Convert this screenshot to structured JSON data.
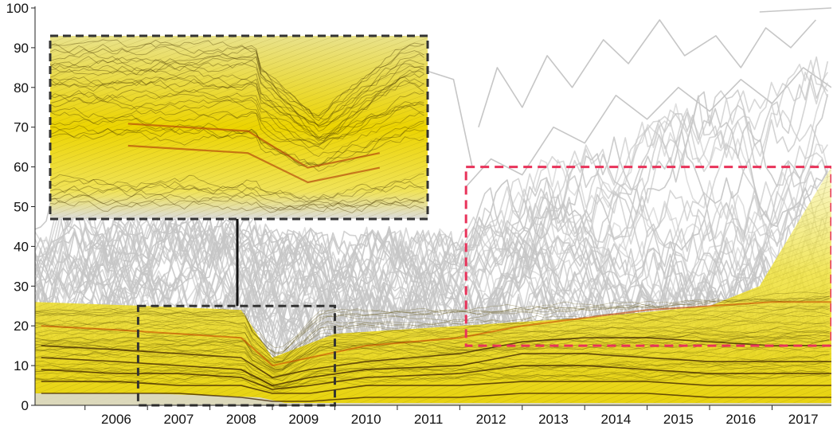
{
  "chart_data": {
    "type": "line",
    "title": "",
    "xlabel": "",
    "ylabel": "",
    "x_tick_labels": [
      "2006",
      "2007",
      "2008",
      "2009",
      "2010",
      "2011",
      "2012",
      "2013",
      "2014",
      "2015",
      "2016",
      "2017"
    ],
    "y_tick_labels": [
      "0",
      "10",
      "20",
      "30",
      "40",
      "50",
      "60",
      "70",
      "80",
      "90",
      "100"
    ],
    "xlim": [
      2005.2,
      2017.95
    ],
    "ylim": [
      0,
      100
    ],
    "grid": false,
    "legend": "none",
    "density_band": {
      "description": "dense overlap of many series rendered as a yellow density ridge",
      "upper_edge": [
        [
          2005.2,
          26
        ],
        [
          2007.0,
          25
        ],
        [
          2008.5,
          24
        ],
        [
          2009.0,
          12
        ],
        [
          2010.0,
          18
        ],
        [
          2012.0,
          20
        ],
        [
          2014.0,
          22
        ],
        [
          2016.0,
          25
        ],
        [
          2016.8,
          30
        ],
        [
          2017.95,
          60
        ]
      ],
      "lower_edge": [
        [
          2005.2,
          0
        ],
        [
          2017.95,
          0
        ]
      ]
    },
    "series": [
      {
        "values": [
          [
            2005.3,
            12
          ],
          [
            2006.5,
            11
          ],
          [
            2007.5,
            10
          ],
          [
            2008.5,
            9
          ],
          [
            2009.0,
            5
          ],
          [
            2009.6,
            7
          ],
          [
            2010.5,
            9
          ],
          [
            2012.0,
            10
          ],
          [
            2013.0,
            13
          ],
          [
            2014.0,
            13
          ],
          [
            2015.0,
            12
          ],
          [
            2016.0,
            11
          ],
          [
            2017.0,
            11
          ],
          [
            2017.95,
            11
          ]
        ]
      },
      {
        "values": [
          [
            2005.3,
            9
          ],
          [
            2006.5,
            8
          ],
          [
            2007.5,
            8
          ],
          [
            2008.5,
            7
          ],
          [
            2009.0,
            4
          ],
          [
            2009.6,
            5
          ],
          [
            2010.5,
            7
          ],
          [
            2012.0,
            8
          ],
          [
            2013.0,
            10
          ],
          [
            2014.0,
            10
          ],
          [
            2015.0,
            9
          ],
          [
            2016.0,
            8
          ],
          [
            2017.0,
            8
          ],
          [
            2017.95,
            8
          ]
        ]
      },
      {
        "values": [
          [
            2005.3,
            6
          ],
          [
            2006.5,
            6
          ],
          [
            2007.5,
            5
          ],
          [
            2008.5,
            5
          ],
          [
            2009.0,
            3
          ],
          [
            2009.6,
            3
          ],
          [
            2010.5,
            5
          ],
          [
            2012.0,
            5
          ],
          [
            2013.0,
            6
          ],
          [
            2014.0,
            6
          ],
          [
            2015.0,
            6
          ],
          [
            2016.0,
            5
          ],
          [
            2017.0,
            5
          ],
          [
            2017.95,
            5
          ]
        ]
      },
      {
        "values": [
          [
            2005.3,
            15
          ],
          [
            2006.5,
            14
          ],
          [
            2007.5,
            13
          ],
          [
            2008.5,
            12
          ],
          [
            2009.0,
            7
          ],
          [
            2009.6,
            9
          ],
          [
            2010.5,
            11
          ],
          [
            2012.0,
            13
          ],
          [
            2013.0,
            16
          ],
          [
            2014.0,
            17
          ],
          [
            2015.0,
            17
          ],
          [
            2016.0,
            16
          ],
          [
            2017.0,
            15
          ],
          [
            2017.95,
            15
          ]
        ]
      },
      {
        "values": [
          [
            2005.3,
            20
          ],
          [
            2006.5,
            19
          ],
          [
            2007.5,
            18
          ],
          [
            2008.5,
            17
          ],
          [
            2009.0,
            10
          ],
          [
            2009.6,
            12
          ],
          [
            2010.5,
            15
          ],
          [
            2012.0,
            17
          ],
          [
            2013.0,
            20
          ],
          [
            2014.0,
            22
          ],
          [
            2015.0,
            24
          ],
          [
            2016.0,
            25
          ],
          [
            2017.0,
            26
          ],
          [
            2017.95,
            26
          ]
        ]
      },
      {
        "values": [
          [
            2005.3,
            3
          ],
          [
            2006.5,
            3
          ],
          [
            2007.5,
            3
          ],
          [
            2008.5,
            2
          ],
          [
            2009.0,
            1
          ],
          [
            2009.6,
            1
          ],
          [
            2010.5,
            2
          ],
          [
            2012.0,
            2
          ],
          [
            2013.0,
            3
          ],
          [
            2014.0,
            3
          ],
          [
            2015.0,
            3
          ],
          [
            2016.0,
            2
          ],
          [
            2017.0,
            2
          ],
          [
            2017.95,
            2
          ]
        ]
      }
    ],
    "upper_series_sample": [
      {
        "values": [
          [
            2012.3,
            70
          ],
          [
            2012.6,
            85
          ],
          [
            2013.0,
            75
          ],
          [
            2013.4,
            88
          ],
          [
            2013.8,
            80
          ],
          [
            2014.3,
            92
          ],
          [
            2014.7,
            86
          ],
          [
            2015.2,
            97
          ],
          [
            2015.6,
            88
          ],
          [
            2016.1,
            93
          ],
          [
            2016.5,
            85
          ],
          [
            2016.9,
            95
          ],
          [
            2017.3,
            90
          ],
          [
            2017.7,
            97
          ]
        ]
      },
      {
        "values": [
          [
            2012.1,
            55
          ],
          [
            2012.5,
            62
          ],
          [
            2013.0,
            58
          ],
          [
            2013.5,
            70
          ],
          [
            2014.0,
            66
          ],
          [
            2014.5,
            78
          ],
          [
            2015.0,
            72
          ],
          [
            2015.5,
            80
          ],
          [
            2016.0,
            74
          ],
          [
            2016.5,
            82
          ],
          [
            2017.0,
            76
          ],
          [
            2017.5,
            85
          ],
          [
            2017.95,
            80
          ]
        ]
      },
      {
        "values": [
          [
            2010.3,
            68
          ],
          [
            2010.6,
            85
          ],
          [
            2011.0,
            86
          ],
          [
            2011.5,
            84
          ],
          [
            2011.9,
            82
          ],
          [
            2012.2,
            60
          ]
        ]
      },
      {
        "values": [
          [
            2016.8,
            99
          ],
          [
            2017.95,
            100
          ]
        ]
      }
    ],
    "inset": {
      "description": "magnified view of the dashed region",
      "source_region": {
        "x": [
          2006.85,
          2010.0
        ],
        "y": [
          0,
          25
        ]
      }
    },
    "highlight_region": {
      "x": [
        2012.1,
        2017.95
      ],
      "y": [
        15,
        60
      ],
      "color": "#e8335a"
    }
  }
}
